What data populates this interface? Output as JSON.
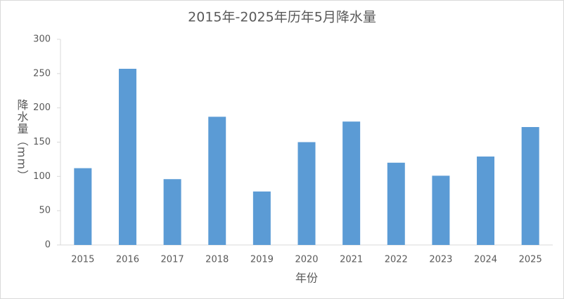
{
  "chart_data": {
    "type": "bar",
    "title": "2015年-2025年历年5月降水量",
    "x_label": "年份",
    "y_label": "降水量（mm）",
    "categories": [
      "2015",
      "2016",
      "2017",
      "2018",
      "2019",
      "2020",
      "2021",
      "2022",
      "2023",
      "2024",
      "2025"
    ],
    "values": [
      112,
      257,
      96,
      187,
      78,
      150,
      180,
      120,
      101,
      129,
      172
    ],
    "color": "#5b9bd5",
    "ylim": [
      0,
      300
    ],
    "yticks": [
      0,
      50,
      100,
      150,
      200,
      250,
      300
    ],
    "grid": false
  }
}
